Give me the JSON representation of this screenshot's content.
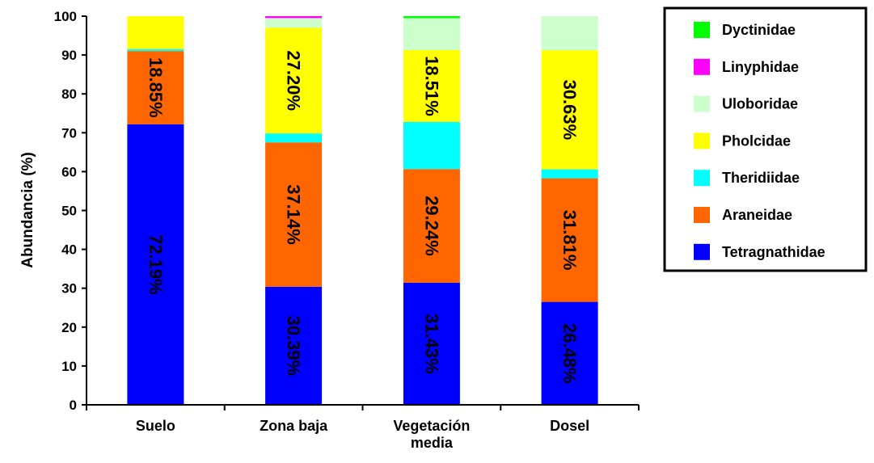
{
  "chart_data": {
    "type": "bar",
    "stacked": true,
    "ylabel": "Abundancia (%)",
    "ylim": [
      0,
      100
    ],
    "yticks": [
      "0",
      "10",
      "20",
      "30",
      "40",
      "50",
      "60",
      "70",
      "80",
      "90",
      "100"
    ],
    "categories": [
      [
        "Suelo"
      ],
      [
        "Zona baja"
      ],
      [
        "Vegetación",
        "media"
      ],
      [
        "Dosel"
      ]
    ],
    "series": [
      {
        "name": "Tetragnathidae",
        "color": "#0000ff",
        "values": [
          72.19,
          30.39,
          31.43,
          26.48
        ],
        "labels": [
          "72.19%",
          "30.39%",
          "31.43%",
          "26.48%"
        ]
      },
      {
        "name": "Araneidae",
        "color": "#ff6600",
        "values": [
          18.85,
          37.14,
          29.24,
          31.81
        ],
        "labels": [
          "18.85%",
          "37.14%",
          "29.24%",
          "31.81%"
        ]
      },
      {
        "name": "Theridiidae",
        "color": "#00ffff",
        "values": [
          0.5,
          2.3,
          12.1,
          2.3
        ],
        "labels": [
          "",
          "",
          "",
          ""
        ]
      },
      {
        "name": "Pholcidae",
        "color": "#ffff00",
        "values": [
          8.46,
          27.2,
          18.51,
          30.63
        ],
        "labels": [
          "",
          "27.20%",
          "18.51%",
          "30.63%"
        ]
      },
      {
        "name": "Uloboridae",
        "color": "#ccffcc",
        "values": [
          0,
          2.47,
          8.21,
          8.78
        ],
        "labels": [
          "",
          "",
          "",
          ""
        ]
      },
      {
        "name": "Linyphidae",
        "color": "#ff00ff",
        "values": [
          0,
          0.5,
          0,
          0
        ],
        "labels": [
          "",
          "",
          "",
          ""
        ]
      },
      {
        "name": "Dyctinidae",
        "color": "#00ff00",
        "values": [
          0,
          0,
          0.51,
          0
        ],
        "labels": [
          "",
          "",
          "",
          ""
        ]
      }
    ],
    "legend": {
      "position": "right",
      "entries": [
        "Dyctinidae",
        "Linyphidae",
        "Uloboridae",
        "Pholcidae",
        "Theridiidae",
        "Araneidae",
        "Tetragnathidae"
      ]
    },
    "grid": false
  }
}
